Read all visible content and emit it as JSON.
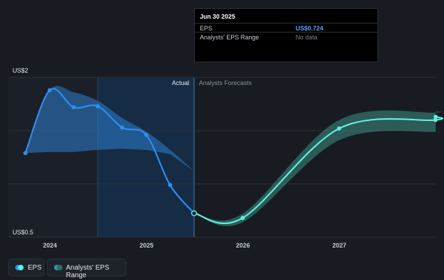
{
  "chart_data": {
    "type": "line",
    "y_top_label": "US$2",
    "y_bottom_label": "US$0.5",
    "ylim": [
      0.5,
      2.0
    ],
    "x_ticks": [
      "2024",
      "2025",
      "2026",
      "2027"
    ],
    "divider_labels": {
      "actual": "Actual",
      "forecast": "Analysts Forecasts"
    },
    "actual": {
      "name": "EPS",
      "x": [
        "2023-09-30",
        "2023-12-31",
        "2024-03-31",
        "2024-06-30",
        "2024-09-30",
        "2024-12-31",
        "2025-03-31",
        "2025-06-30"
      ],
      "y": [
        1.29,
        1.88,
        1.72,
        1.73,
        1.53,
        1.46,
        0.99,
        0.724
      ]
    },
    "actual_range_upper": [
      1.29,
      1.88,
      1.86,
      1.78,
      1.62,
      1.49,
      1.32,
      1.12
    ],
    "actual_range_lower": [
      1.29,
      1.3,
      1.3,
      1.32,
      1.33,
      1.32,
      1.28,
      1.12
    ],
    "forecast": {
      "name": "EPS",
      "x": [
        "2025-06-30",
        "2025-12-31",
        "2026-12-31",
        "2027-12-31"
      ],
      "y": [
        0.724,
        0.68,
        1.52,
        1.6
      ],
      "range_upper": [
        0.724,
        0.72,
        1.6,
        1.67
      ],
      "range_lower": [
        0.724,
        0.64,
        1.41,
        1.49
      ]
    },
    "marker": {
      "date": "2025-06-30",
      "value": 0.724
    }
  },
  "tooltip": {
    "date": "Jun 30 2025",
    "rows": [
      {
        "label": "EPS",
        "value": "US$0.724"
      },
      {
        "label": "Analysts' EPS Range",
        "value": "No data"
      }
    ]
  },
  "legend": {
    "items": [
      {
        "label": "EPS",
        "colors": [
          "#2f8ff0",
          "#5ff0e0"
        ]
      },
      {
        "label": "Analysts' EPS Range",
        "colors": [
          "#3a8fb5",
          "#2f6e63"
        ]
      }
    ]
  },
  "colors": {
    "actual_line": "#2f8ff0",
    "forecast_line": "#5ff0e0",
    "forecast_band": "#3f8f84",
    "actual_band": "#2e7fd0",
    "actual_shade": "#15304b"
  }
}
